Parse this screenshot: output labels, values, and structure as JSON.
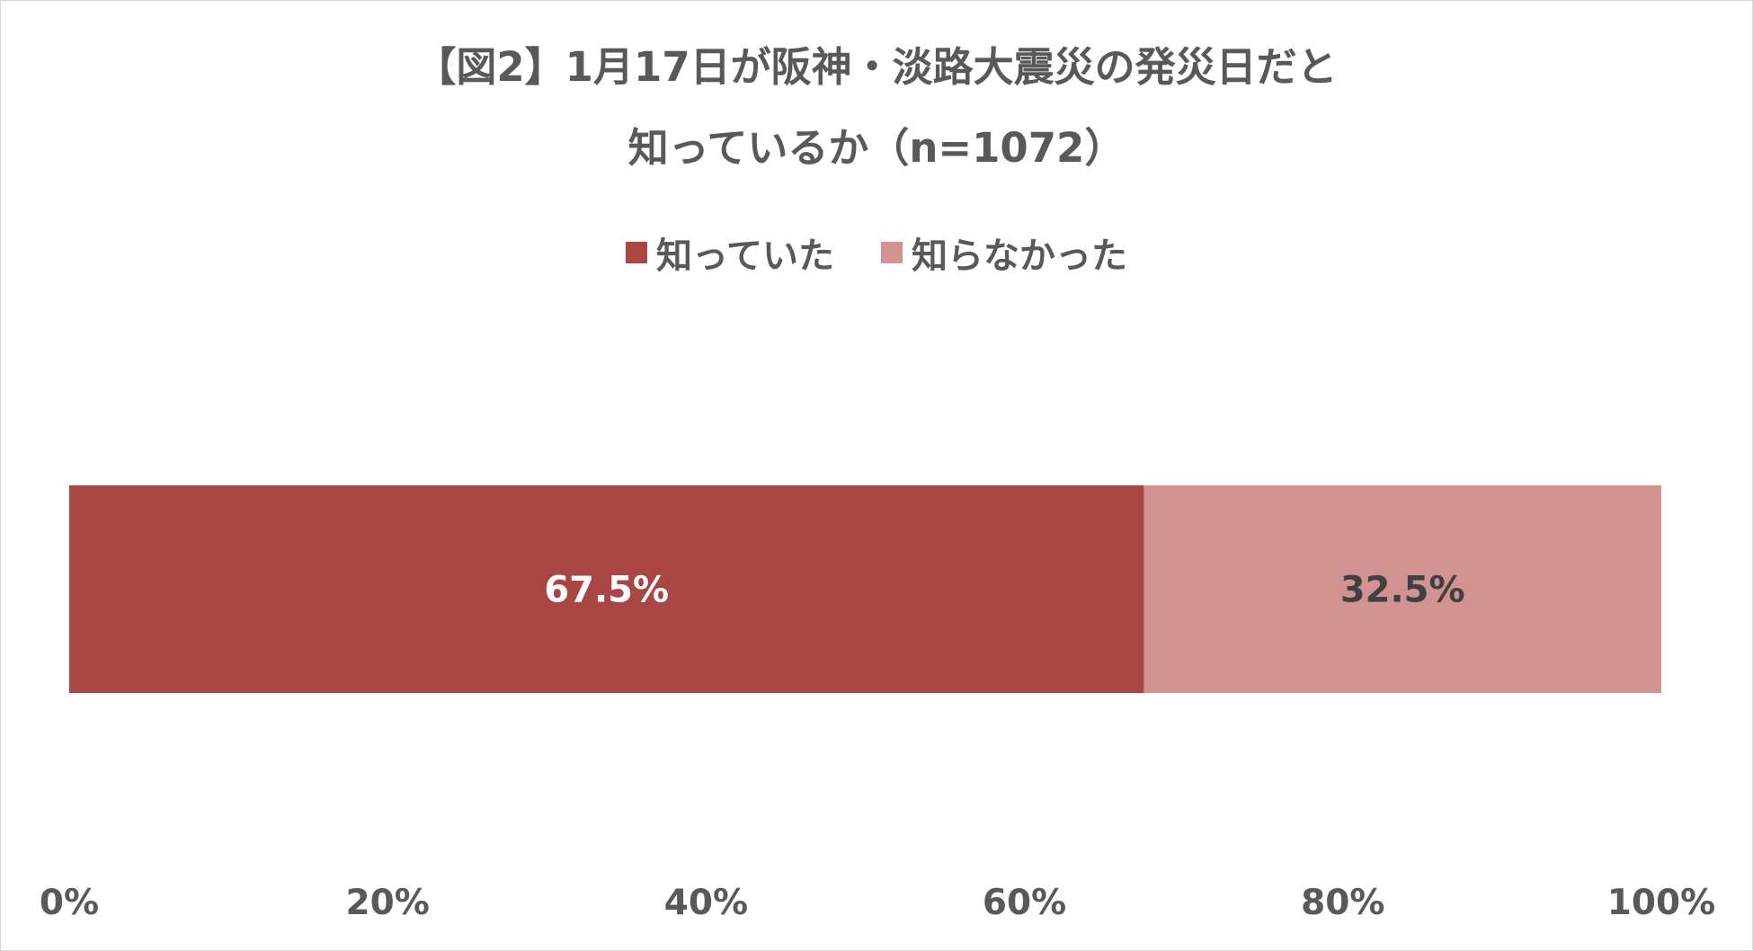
{
  "chart_data": {
    "type": "bar",
    "orientation": "horizontal",
    "stacked": "100%",
    "title_lines": [
      "【図2】1月17日が阪神・淡路大震災の発災日だと",
      "知っているか（n=1072）"
    ],
    "series": [
      {
        "name": "知っていた",
        "values": [
          67.5
        ],
        "color": "#a94644",
        "label": "67.5%",
        "label_color": "#ffffff"
      },
      {
        "name": "知らなかった",
        "values": [
          32.5
        ],
        "color": "#d39292",
        "label": "32.5%",
        "label_color": "#404040"
      }
    ],
    "xlim": [
      0,
      100
    ],
    "x_ticks": [
      "0%",
      "20%",
      "40%",
      "60%",
      "80%",
      "100%"
    ],
    "legend_position": "top",
    "grid": false
  }
}
